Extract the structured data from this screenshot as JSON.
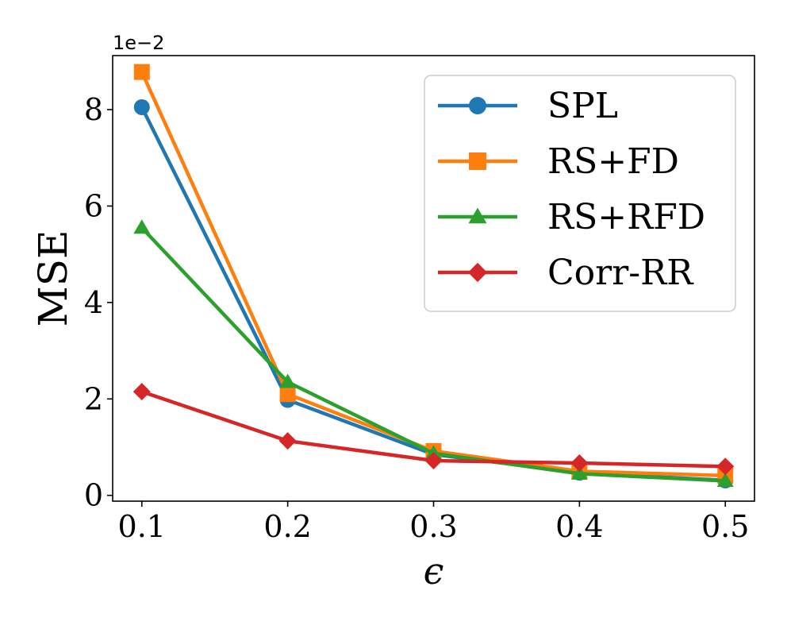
{
  "chart_data": {
    "type": "line",
    "title": "",
    "xlabel": "ϵ",
    "ylabel": "MSE",
    "y_scale_label": "1e−2",
    "x": [
      0.1,
      0.2,
      0.3,
      0.4,
      0.5
    ],
    "x_tick_labels": [
      "0.1",
      "0.2",
      "0.3",
      "0.4",
      "0.5"
    ],
    "y_ticks": [
      0,
      2,
      4,
      6,
      8
    ],
    "y_tick_labels": [
      "0",
      "2",
      "4",
      "6",
      "8"
    ],
    "xlim": [
      0.08,
      0.52
    ],
    "ylim": [
      -0.12,
      9.12
    ],
    "grid": false,
    "legend_position": "upper-right",
    "series": [
      {
        "name": "SPL",
        "marker": "circle",
        "color": "#1f77b4",
        "values": [
          8.05,
          1.98,
          0.85,
          0.47,
          0.31
        ]
      },
      {
        "name": "RS+FD",
        "marker": "square",
        "color": "#ff7f0e",
        "values": [
          8.78,
          2.1,
          0.92,
          0.5,
          0.41
        ]
      },
      {
        "name": "RS+RFD",
        "marker": "triangle",
        "color": "#2ca02c",
        "values": [
          5.55,
          2.35,
          0.87,
          0.45,
          0.3
        ]
      },
      {
        "name": "Corr-RR",
        "marker": "diamond",
        "color": "#d62728",
        "values": [
          2.15,
          1.13,
          0.72,
          0.67,
          0.6
        ]
      }
    ]
  }
}
